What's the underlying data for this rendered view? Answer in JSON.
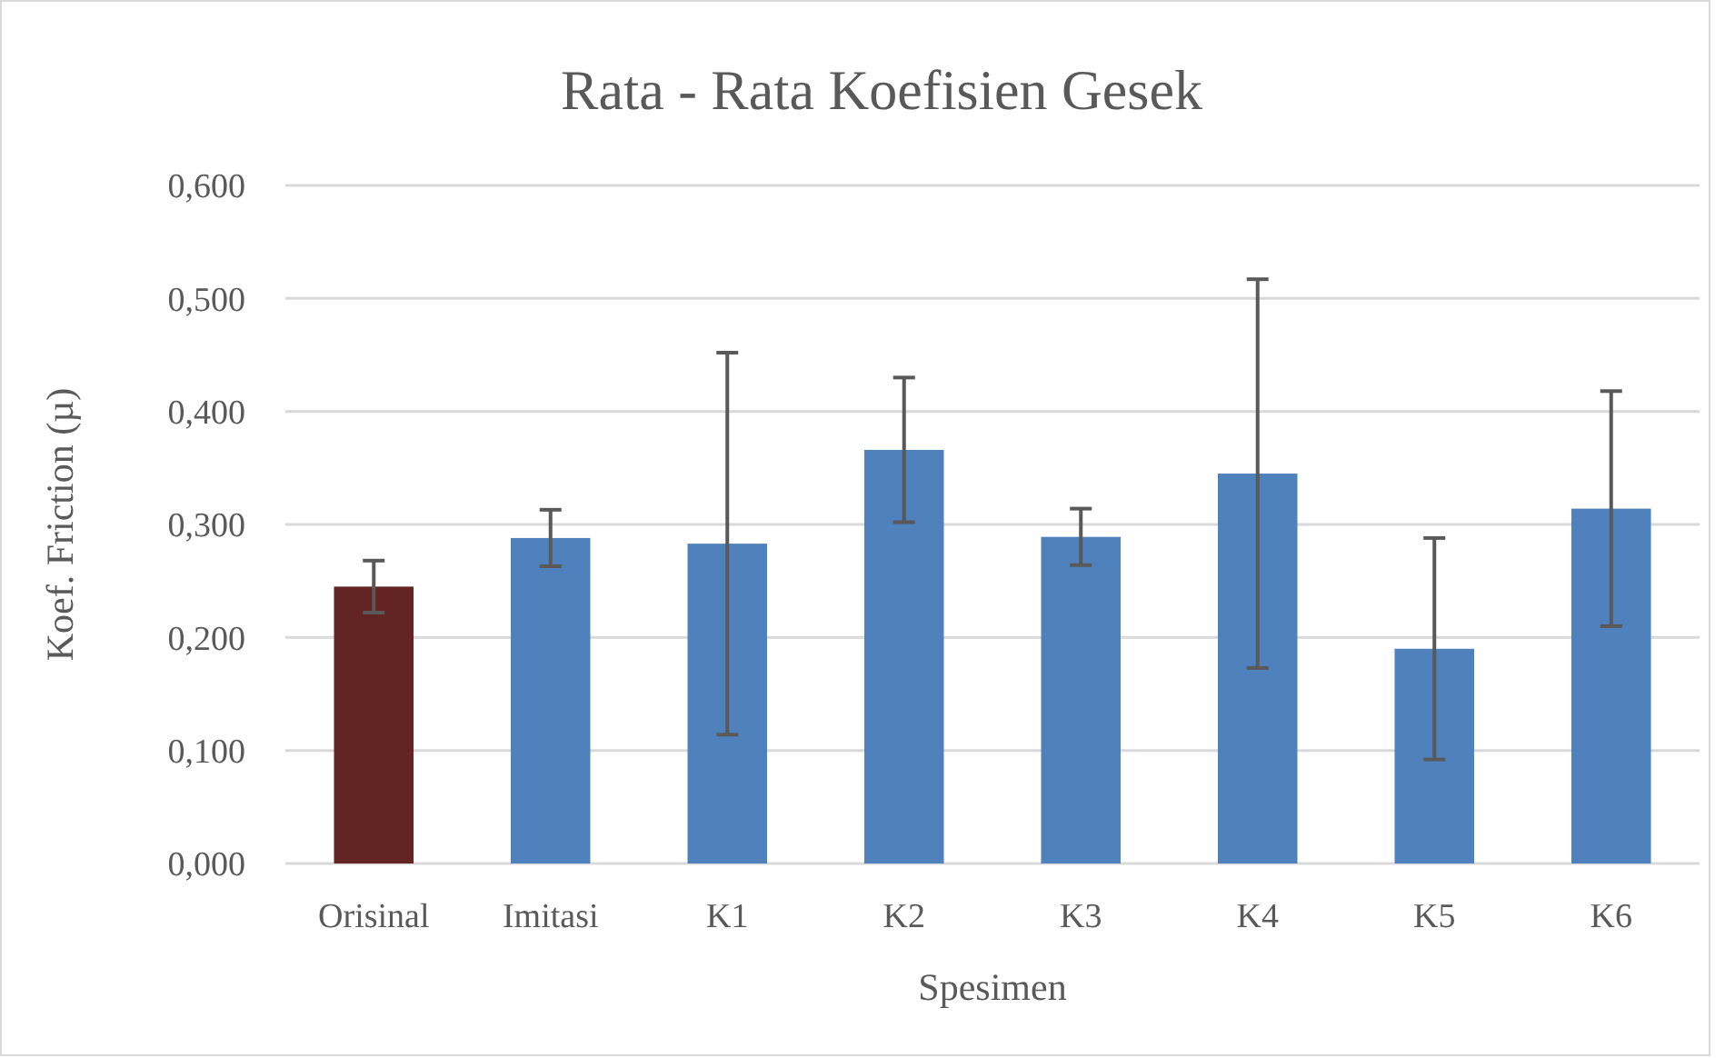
{
  "chart_data": {
    "type": "bar",
    "title": "Rata - Rata Koefisien Gesek",
    "xlabel": "Spesimen",
    "ylabel": "Koef. Friction (µ)",
    "categories": [
      "Orisinal",
      "Imitasi",
      "K1",
      "K2",
      "K3",
      "K4",
      "K5",
      "K6"
    ],
    "values": [
      0.245,
      0.288,
      0.283,
      0.366,
      0.289,
      0.345,
      0.19,
      0.314
    ],
    "colors": [
      "#632523",
      "#4f81bd",
      "#4f81bd",
      "#4f81bd",
      "#4f81bd",
      "#4f81bd",
      "#4f81bd",
      "#4f81bd"
    ],
    "errors": [
      0.023,
      0.025,
      0.169,
      0.064,
      0.025,
      0.172,
      0.098,
      0.104
    ],
    "ylim": [
      0,
      0.6
    ],
    "yticks": [
      {
        "value": 0,
        "label": "0,000"
      },
      {
        "value": 0.1,
        "label": "0,100"
      },
      {
        "value": 0.2,
        "label": "0,200"
      },
      {
        "value": 0.3,
        "label": "0,300"
      },
      {
        "value": 0.4,
        "label": "0,400"
      },
      {
        "value": 0.5,
        "label": "0,500"
      },
      {
        "value": 0.6,
        "label": "0,600"
      }
    ],
    "grid": "y"
  }
}
